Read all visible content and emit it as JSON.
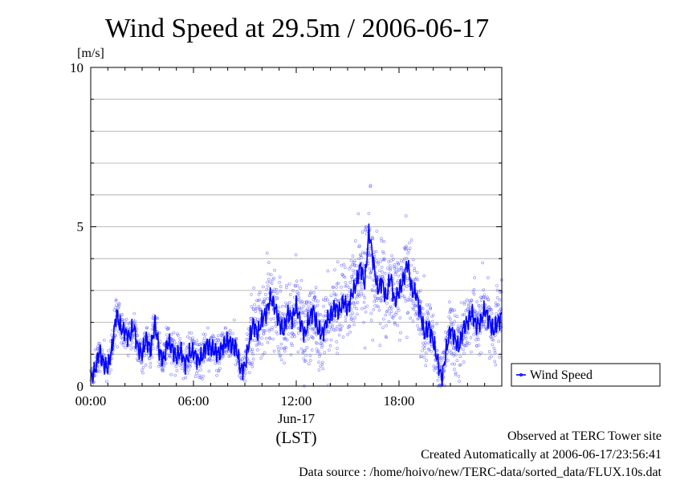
{
  "chart_data": {
    "type": "scatter",
    "title": "Wind Speed at 29.5m / 2006-06-17",
    "ylabel": "[m/s]",
    "xlabel": "(LST)",
    "date_label": "Jun-17",
    "ylim": [
      0,
      10
    ],
    "xlim": [
      "00:00",
      "24:00"
    ],
    "x_tick_labels": [
      "00:00",
      "06:00",
      "12:00",
      "18:00"
    ],
    "y_tick_labels": [
      "0",
      "5",
      "10"
    ],
    "grid": true,
    "legend_position": "right",
    "series": [
      {
        "name": "Wind Speed",
        "color": "#0000ff",
        "hours": [
          0.0,
          0.25,
          0.5,
          0.75,
          1.0,
          1.25,
          1.5,
          1.75,
          2.0,
          2.25,
          2.5,
          2.75,
          3.0,
          3.25,
          3.5,
          3.75,
          4.0,
          4.25,
          4.5,
          4.75,
          5.0,
          5.25,
          5.5,
          5.75,
          6.0,
          6.25,
          6.5,
          6.75,
          7.0,
          7.25,
          7.5,
          7.75,
          8.0,
          8.25,
          8.5,
          8.75,
          9.0,
          9.25,
          9.5,
          9.75,
          10.0,
          10.25,
          10.5,
          10.75,
          11.0,
          11.25,
          11.5,
          11.75,
          12.0,
          12.25,
          12.5,
          12.75,
          13.0,
          13.25,
          13.5,
          13.75,
          14.0,
          14.25,
          14.5,
          14.75,
          15.0,
          15.25,
          15.5,
          15.75,
          16.0,
          16.25,
          16.5,
          16.75,
          17.0,
          17.25,
          17.5,
          17.75,
          18.0,
          18.25,
          18.5,
          18.75,
          19.0,
          19.25,
          19.5,
          19.75,
          20.0,
          20.25,
          20.5,
          20.75,
          21.0,
          21.25,
          21.5,
          21.75,
          22.0,
          22.25,
          22.5,
          22.75,
          23.0,
          23.25,
          23.5,
          23.75,
          24.0
        ],
        "mean": [
          0.2,
          0.5,
          1.1,
          0.7,
          0.6,
          1.2,
          2.3,
          1.8,
          1.7,
          1.5,
          1.9,
          1.2,
          1.0,
          1.5,
          1.1,
          2.0,
          1.1,
          0.8,
          1.4,
          1.2,
          0.9,
          1.1,
          0.7,
          1.0,
          1.1,
          0.8,
          0.9,
          1.3,
          1.2,
          1.1,
          1.0,
          1.3,
          1.4,
          1.3,
          1.2,
          0.5,
          0.6,
          1.4,
          2.0,
          1.6,
          2.1,
          2.3,
          2.8,
          2.5,
          2.0,
          1.7,
          2.3,
          2.1,
          2.5,
          2.0,
          1.6,
          2.1,
          2.4,
          1.8,
          1.6,
          2.0,
          2.2,
          2.5,
          2.3,
          2.7,
          2.4,
          2.9,
          3.2,
          3.8,
          3.2,
          4.9,
          3.9,
          3.0,
          3.3,
          2.7,
          3.5,
          2.6,
          3.0,
          3.3,
          3.9,
          3.0,
          2.9,
          2.3,
          1.6,
          1.9,
          1.4,
          0.8,
          0.2,
          1.1,
          1.8,
          1.5,
          1.2,
          1.8,
          2.0,
          2.3,
          1.9,
          2.0,
          2.4,
          2.1,
          1.7,
          2.0,
          2.2
        ],
        "spread": [
          0.3,
          0.4,
          0.5,
          0.4,
          0.4,
          0.5,
          0.5,
          0.5,
          0.5,
          0.5,
          0.5,
          0.5,
          0.5,
          0.5,
          0.5,
          0.5,
          0.5,
          0.5,
          0.5,
          0.5,
          0.5,
          0.5,
          0.5,
          0.5,
          0.5,
          0.5,
          0.5,
          0.5,
          0.5,
          0.5,
          0.5,
          0.5,
          0.5,
          0.5,
          0.5,
          0.4,
          0.6,
          0.9,
          1.0,
          1.0,
          1.0,
          1.0,
          1.0,
          1.0,
          1.0,
          1.0,
          1.0,
          1.0,
          1.0,
          1.0,
          1.0,
          1.0,
          1.0,
          1.0,
          1.0,
          1.0,
          1.0,
          1.1,
          1.1,
          1.1,
          1.1,
          1.2,
          1.2,
          1.3,
          1.3,
          1.4,
          1.4,
          1.3,
          1.2,
          1.2,
          1.2,
          1.2,
          1.2,
          1.2,
          1.3,
          1.2,
          1.1,
          1.0,
          0.9,
          0.8,
          0.8,
          0.8,
          0.6,
          0.9,
          0.9,
          0.9,
          0.9,
          0.9,
          0.9,
          0.9,
          0.9,
          0.9,
          0.9,
          0.9,
          0.9,
          0.9,
          0.9
        ]
      }
    ]
  },
  "footer": {
    "site": "Observed at TERC Tower site",
    "created": "Created Automatically at 2006-06-17/23:56:41",
    "source": "Data source : /home/hoivo/new/TERC-data/sorted_data/FLUX.10s.dat"
  }
}
